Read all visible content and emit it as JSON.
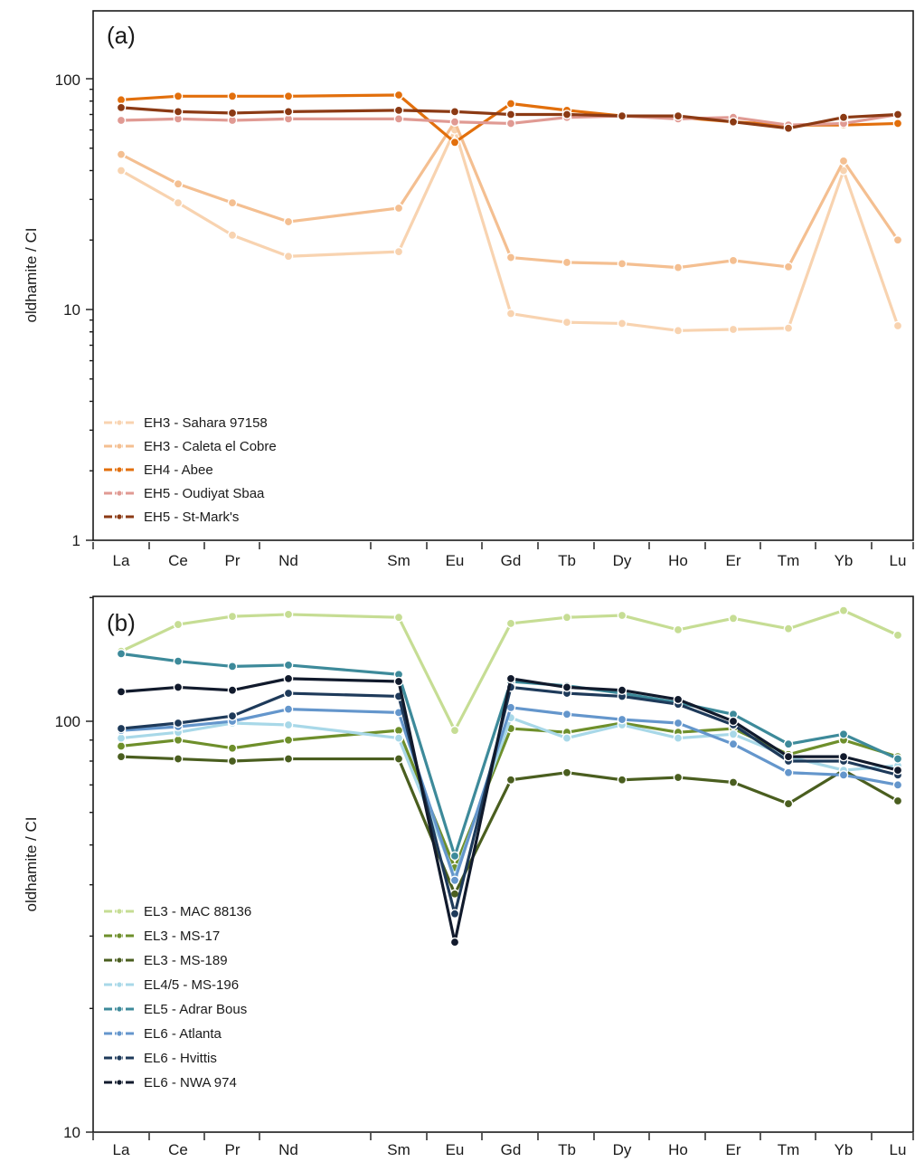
{
  "chart_data": [
    {
      "type": "line",
      "panel_label": "(a)",
      "ylabel": "oldhamite / CI",
      "yscale": "log",
      "ylim": [
        1,
        200
      ],
      "yticks": [
        "1",
        "10",
        "100"
      ],
      "categories": [
        "La",
        "Ce",
        "Pr",
        "Nd",
        "Sm",
        "Eu",
        "Gd",
        "Tb",
        "Dy",
        "Ho",
        "Er",
        "Tm",
        "Yb",
        "Lu"
      ],
      "legend_position": "bottom-left",
      "grid": false,
      "series": [
        {
          "name": "EH3 - Sahara 97158",
          "color": "#f8d3b0",
          "values": [
            40,
            29,
            21,
            17,
            17.8,
            60,
            9.6,
            8.8,
            8.7,
            8.1,
            8.2,
            8.3,
            40,
            8.5
          ]
        },
        {
          "name": "EH3 - Caleta el Cobre",
          "color": "#f4bf91",
          "values": [
            47,
            35,
            29,
            24,
            27.5,
            65,
            16.8,
            16,
            15.8,
            15.2,
            16.3,
            15.3,
            44,
            20
          ]
        },
        {
          "name": "EH4 - Abee",
          "color": "#e26f0c",
          "values": [
            81,
            84,
            84,
            84,
            85,
            53,
            78,
            73,
            69,
            68,
            65,
            63,
            63,
            64
          ]
        },
        {
          "name": "EH5 - Oudiyat Sbaa",
          "color": "#e09a93",
          "values": [
            66,
            67,
            66,
            67,
            67,
            65,
            64,
            68,
            69,
            67,
            68,
            63,
            64,
            70
          ]
        },
        {
          "name": "EH5 - St-Mark's",
          "color": "#8b3a14",
          "values": [
            75,
            72,
            71,
            72,
            73,
            72,
            70,
            70,
            69,
            69,
            65,
            61,
            68,
            70
          ]
        }
      ]
    },
    {
      "type": "line",
      "panel_label": "(b)",
      "ylabel": "oldhamite / CI",
      "yscale": "log",
      "ylim": [
        10,
        200
      ],
      "yticks": [
        "10",
        "100"
      ],
      "categories": [
        "La",
        "Ce",
        "Pr",
        "Nd",
        "Sm",
        "Eu",
        "Gd",
        "Tb",
        "Dy",
        "Ho",
        "Er",
        "Tm",
        "Yb",
        "Lu"
      ],
      "legend_position": "bottom-left",
      "grid": false,
      "series": [
        {
          "name": "EL3 - MAC 88136",
          "color": "#c6dd94",
          "values": [
            148,
            172,
            180,
            182,
            179,
            95,
            173,
            179,
            181,
            167,
            178,
            168,
            186,
            162
          ]
        },
        {
          "name": "EL3 - MS-17",
          "color": "#6e8f2b",
          "values": [
            87,
            90,
            86,
            90,
            95,
            44,
            96,
            94,
            99,
            94,
            96,
            83,
            90,
            82
          ]
        },
        {
          "name": "EL3 - MS-189",
          "color": "#4a5e1f",
          "values": [
            82,
            81,
            80,
            81,
            81,
            38,
            72,
            75,
            72,
            73,
            71,
            63,
            76,
            64
          ]
        },
        {
          "name": "EL4/5 - MS-196",
          "color": "#a8d8e8",
          "values": [
            91,
            94,
            99,
            98,
            91,
            42,
            102,
            91,
            98,
            91,
            93,
            82,
            76,
            78
          ]
        },
        {
          "name": "EL5 - Adrar Bous",
          "color": "#3d8a9a",
          "values": [
            146,
            140,
            136,
            137,
            130,
            47,
            125,
            122,
            117,
            111,
            104,
            88,
            93,
            81
          ]
        },
        {
          "name": "EL6 - Atlanta",
          "color": "#6496cc",
          "values": [
            95,
            97,
            100,
            107,
            105,
            41,
            108,
            104,
            101,
            99,
            88,
            75,
            74,
            70
          ]
        },
        {
          "name": "EL6 - Hvittis",
          "color": "#1e3a5a",
          "values": [
            96,
            99,
            103,
            117,
            115,
            34,
            121,
            117,
            115,
            110,
            98,
            80,
            80,
            74
          ]
        },
        {
          "name": "EL6 - NWA 974",
          "color": "#111a2c",
          "values": [
            118,
            121,
            119,
            127,
            125,
            29,
            127,
            121,
            119,
            113,
            100,
            82,
            82,
            76
          ]
        }
      ]
    }
  ]
}
